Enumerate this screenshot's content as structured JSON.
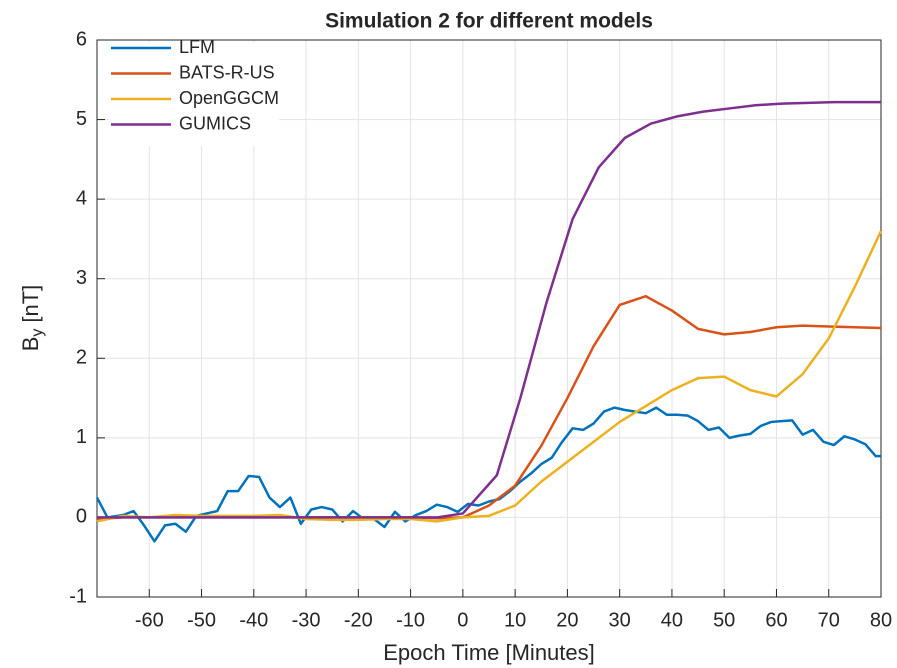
{
  "chart_data": {
    "type": "line",
    "title": "Simulation 2 for different models",
    "xlabel": "Epoch Time [Minutes]",
    "ylabel": {
      "base": "B",
      "sub": "y",
      "unit": "[nT]"
    },
    "xlim": [
      -70,
      80
    ],
    "ylim": [
      -1,
      6
    ],
    "xticks": [
      -60,
      -50,
      -40,
      -30,
      -20,
      -10,
      0,
      10,
      20,
      30,
      40,
      50,
      60,
      70,
      80
    ],
    "yticks": [
      -1,
      0,
      1,
      2,
      3,
      4,
      5,
      6
    ],
    "grid": true,
    "legend": "upper left",
    "series": [
      {
        "name": "LFM",
        "color": "#0072BD",
        "x": [
          -70,
          -68,
          -65,
          -63,
          -61,
          -59,
          -57,
          -55,
          -53,
          -51,
          -49,
          -47,
          -45,
          -43,
          -41,
          -39,
          -37,
          -35,
          -33,
          -31,
          -29,
          -27,
          -25,
          -23,
          -21,
          -19,
          -17,
          -15,
          -13,
          -11,
          -9,
          -7,
          -5,
          -3,
          -1,
          1,
          3,
          5,
          7,
          9,
          11,
          13,
          15,
          17,
          19,
          21,
          23,
          25,
          27,
          29,
          31,
          33,
          35,
          37,
          39,
          41,
          43,
          45,
          47,
          49,
          51,
          53,
          55,
          57,
          59,
          61,
          63,
          65,
          67,
          69,
          71,
          73,
          75,
          77,
          79,
          80
        ],
        "values": [
          0.25,
          0.0,
          0.03,
          0.08,
          -0.1,
          -0.3,
          -0.1,
          -0.08,
          -0.18,
          0.02,
          0.05,
          0.08,
          0.33,
          0.33,
          0.52,
          0.51,
          0.25,
          0.13,
          0.25,
          -0.08,
          0.1,
          0.13,
          0.1,
          -0.05,
          0.08,
          -0.02,
          -0.02,
          -0.12,
          0.07,
          -0.05,
          0.03,
          0.08,
          0.16,
          0.13,
          0.07,
          0.17,
          0.15,
          0.2,
          0.23,
          0.33,
          0.45,
          0.55,
          0.67,
          0.75,
          0.95,
          1.12,
          1.1,
          1.18,
          1.33,
          1.38,
          1.35,
          1.33,
          1.31,
          1.38,
          1.29,
          1.29,
          1.28,
          1.21,
          1.1,
          1.13,
          1.0,
          1.03,
          1.05,
          1.15,
          1.2,
          1.21,
          1.22,
          1.04,
          1.1,
          0.95,
          0.91,
          1.02,
          0.98,
          0.92,
          0.77,
          0.77
        ]
      },
      {
        "name": "BATS-R-US",
        "color": "#D95319",
        "x": [
          -70,
          -65,
          -60,
          -55,
          -50,
          -45,
          -40,
          -35,
          -30,
          -25,
          -20,
          -15,
          -10,
          -5,
          0,
          5,
          10,
          15,
          20,
          25,
          30,
          35,
          40,
          45,
          50,
          55,
          60,
          65,
          70,
          75,
          80
        ],
        "values": [
          -0.02,
          0.0,
          0.0,
          0.0,
          0.0,
          0.0,
          0.0,
          0.0,
          0.0,
          0.0,
          0.0,
          0.0,
          0.0,
          -0.01,
          0.0,
          0.15,
          0.4,
          0.9,
          1.5,
          2.15,
          2.67,
          2.78,
          2.6,
          2.37,
          2.3,
          2.33,
          2.39,
          2.41,
          2.4,
          2.39,
          2.38
        ]
      },
      {
        "name": "OpenGGCM",
        "color": "#EDB120",
        "x": [
          -70,
          -65,
          -60,
          -55,
          -50,
          -45,
          -40,
          -35,
          -30,
          -25,
          -20,
          -15,
          -10,
          -5,
          0,
          5,
          10,
          15,
          20,
          25,
          30,
          35,
          40,
          45,
          50,
          55,
          60,
          65,
          70,
          75,
          80
        ],
        "values": [
          -0.05,
          0.02,
          0.0,
          0.03,
          0.02,
          0.02,
          0.02,
          0.03,
          -0.02,
          -0.03,
          -0.03,
          -0.02,
          -0.02,
          -0.05,
          0.0,
          0.02,
          0.15,
          0.45,
          0.7,
          0.95,
          1.2,
          1.4,
          1.6,
          1.75,
          1.77,
          1.6,
          1.52,
          1.8,
          2.25,
          2.9,
          3.6
        ]
      },
      {
        "name": "GUMICS",
        "color": "#7E2F8E",
        "x": [
          -70,
          -65,
          -60,
          -55,
          -50,
          -45,
          -40,
          -35,
          -30,
          -25,
          -20,
          -15,
          -10,
          -5,
          0,
          6.5,
          11,
          16,
          21,
          26,
          31,
          36,
          41,
          46,
          51,
          56,
          61,
          66,
          71,
          76,
          80
        ],
        "values": [
          0,
          0,
          0,
          0,
          0,
          0,
          0,
          0,
          0,
          0,
          0,
          0,
          0,
          0,
          0.05,
          0.53,
          1.5,
          2.7,
          3.75,
          4.4,
          4.77,
          4.95,
          5.04,
          5.1,
          5.14,
          5.18,
          5.2,
          5.21,
          5.22,
          5.22,
          5.22
        ]
      }
    ]
  }
}
